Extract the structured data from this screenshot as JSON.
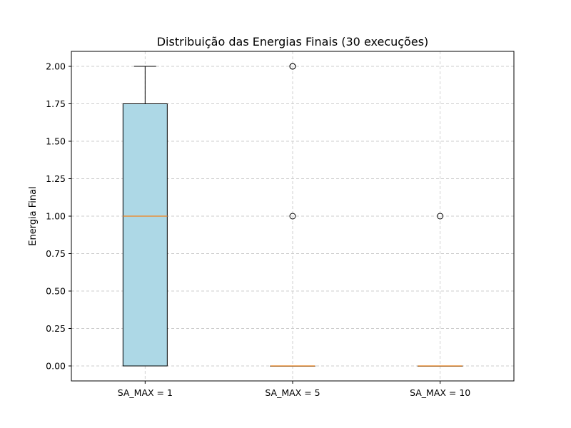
{
  "chart_data": {
    "type": "box",
    "title": "Distribuição das Energias Finais (30 execuções)",
    "xlabel": "",
    "ylabel": "Energia Final",
    "ylim": [
      -0.1,
      2.1
    ],
    "yticks": [
      "0.00",
      "0.25",
      "0.50",
      "0.75",
      "1.00",
      "1.25",
      "1.50",
      "1.75",
      "2.00"
    ],
    "grid": true,
    "box_color": "#add8e6",
    "median_color": "#e8913c",
    "categories": [
      "SA_MAX = 1",
      "SA_MAX = 5",
      "SA_MAX = 10"
    ],
    "boxes": [
      {
        "name": "SA_MAX = 1",
        "q1": 0,
        "median": 1,
        "q3": 1.75,
        "whisker_low": 0,
        "whisker_high": 2,
        "outliers": []
      },
      {
        "name": "SA_MAX = 5",
        "q1": 0,
        "median": 0,
        "q3": 0,
        "whisker_low": 0,
        "whisker_high": 0,
        "outliers": [
          1,
          2,
          2
        ]
      },
      {
        "name": "SA_MAX = 10",
        "q1": 0,
        "median": 0,
        "q3": 0,
        "whisker_low": 0,
        "whisker_high": 0,
        "outliers": [
          1
        ]
      }
    ]
  }
}
